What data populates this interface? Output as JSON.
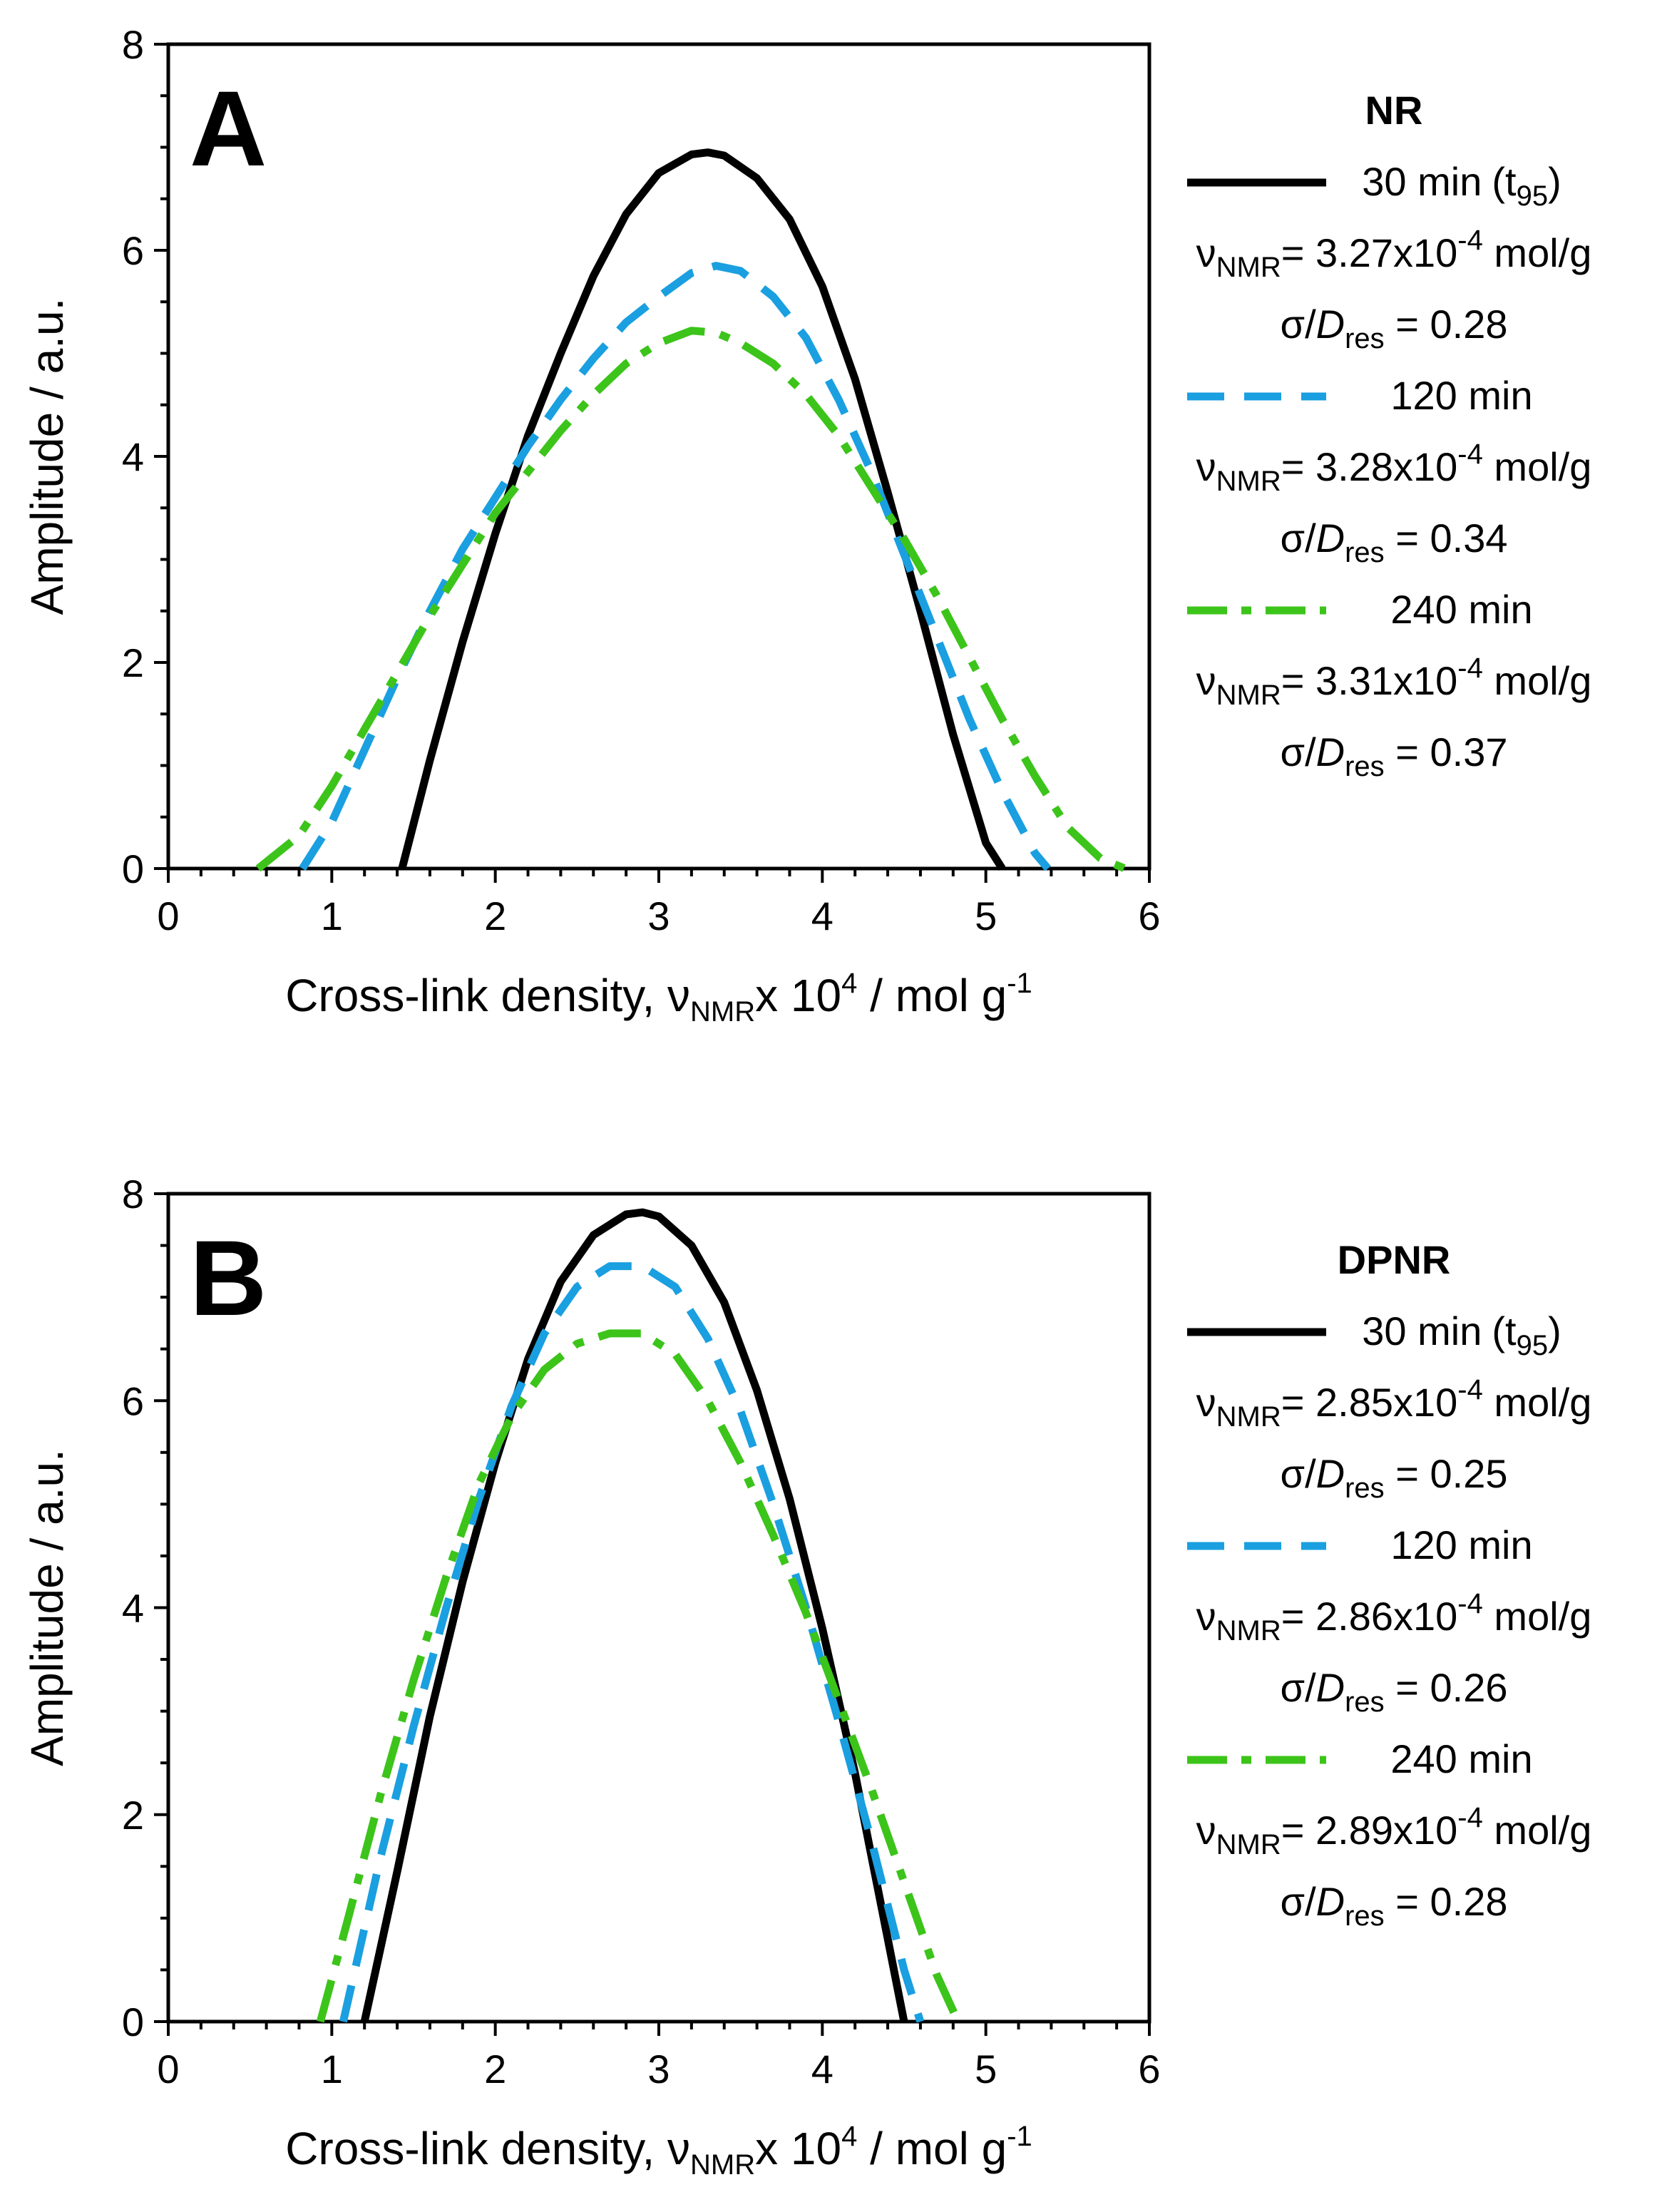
{
  "chart_data": [
    {
      "type": "line",
      "panel_label": "A",
      "xlabel": "Cross-link density, ",
      "xlabel_symbol": "ν",
      "xlabel_symbol_sub": "NMR",
      "xlabel_rest": "x 10",
      "xlabel_sup": "4",
      "xlabel_unit": " / mol g",
      "xlabel_unit_sup": "-1",
      "ylabel": "Amplitude / a.u.",
      "xlim": [
        0,
        6
      ],
      "ylim": [
        0,
        8
      ],
      "xticks": [
        "0",
        "1",
        "2",
        "3",
        "4",
        "5",
        "6"
      ],
      "yticks": [
        "0",
        "2",
        "4",
        "6",
        "8"
      ],
      "legend_title": "NR",
      "series": [
        {
          "name": "30 min",
          "name_paren": "(t",
          "name_paren_sub": "95",
          "name_paren_close": ")",
          "color": "#000000",
          "style": "solid",
          "nu_symbol": "ν",
          "nu_sub": "NMR",
          "nu_value": "= 3.27x10",
          "nu_exp": "-4",
          "nu_unit": " mol/g",
          "sigma_symbol": "σ/",
          "sigma_D": "D",
          "sigma_sub": "res",
          "sigma_value": " = 0.28",
          "x": [
            1.43,
            1.6,
            1.8,
            2.0,
            2.2,
            2.4,
            2.6,
            2.8,
            3.0,
            3.2,
            3.3,
            3.4,
            3.6,
            3.8,
            4.0,
            4.2,
            4.4,
            4.6,
            4.8,
            5.0,
            5.1
          ],
          "y": [
            0.0,
            1.05,
            2.2,
            3.25,
            4.2,
            5.0,
            5.75,
            6.35,
            6.75,
            6.93,
            6.95,
            6.92,
            6.7,
            6.3,
            5.65,
            4.75,
            3.65,
            2.5,
            1.3,
            0.25,
            0.0
          ]
        },
        {
          "name": "120 min",
          "color": "#1a9fe0",
          "style": "dashed",
          "nu_symbol": "ν",
          "nu_sub": "NMR",
          "nu_value": "= 3.28x10",
          "nu_exp": "-4",
          "nu_unit": " mol/g",
          "sigma_symbol": "σ/",
          "sigma_D": "D",
          "sigma_sub": "res",
          "sigma_value": " = 0.34",
          "x": [
            0.82,
            1.0,
            1.2,
            1.4,
            1.6,
            1.8,
            2.0,
            2.2,
            2.4,
            2.6,
            2.8,
            3.0,
            3.2,
            3.35,
            3.5,
            3.7,
            3.9,
            4.1,
            4.3,
            4.5,
            4.7,
            4.9,
            5.1,
            5.3,
            5.38
          ],
          "y": [
            0.0,
            0.45,
            1.15,
            1.85,
            2.5,
            3.1,
            3.6,
            4.1,
            4.55,
            4.95,
            5.3,
            5.55,
            5.78,
            5.85,
            5.8,
            5.55,
            5.15,
            4.55,
            3.85,
            3.05,
            2.25,
            1.45,
            0.75,
            0.15,
            0.0
          ]
        },
        {
          "name": "240 min",
          "color": "#3cc41a",
          "style": "dashdot",
          "nu_symbol": "ν",
          "nu_sub": "NMR",
          "nu_value": "= 3.31x10",
          "nu_exp": "-4",
          "nu_unit": " mol/g",
          "sigma_symbol": "σ/",
          "sigma_D": "D",
          "sigma_sub": "res",
          "sigma_value": " = 0.37",
          "x": [
            0.55,
            0.8,
            1.0,
            1.2,
            1.4,
            1.6,
            1.8,
            2.0,
            2.2,
            2.4,
            2.6,
            2.8,
            3.0,
            3.2,
            3.35,
            3.5,
            3.7,
            3.9,
            4.1,
            4.3,
            4.5,
            4.7,
            4.9,
            5.1,
            5.3,
            5.5,
            5.7,
            5.85
          ],
          "y": [
            0.0,
            0.32,
            0.8,
            1.35,
            1.9,
            2.45,
            2.95,
            3.45,
            3.85,
            4.25,
            4.6,
            4.9,
            5.1,
            5.22,
            5.2,
            5.1,
            4.9,
            4.6,
            4.2,
            3.7,
            3.2,
            2.65,
            2.05,
            1.45,
            0.9,
            0.4,
            0.1,
            0.0
          ]
        }
      ]
    },
    {
      "type": "line",
      "panel_label": "B",
      "xlabel": "Cross-link density, ",
      "xlabel_symbol": "ν",
      "xlabel_symbol_sub": "NMR",
      "xlabel_rest": "x 10",
      "xlabel_sup": "4",
      "xlabel_unit": " / mol g",
      "xlabel_unit_sup": "-1",
      "ylabel": "Amplitude / a.u.",
      "xlim": [
        0,
        6
      ],
      "ylim": [
        0,
        8
      ],
      "xticks": [
        "0",
        "1",
        "2",
        "3",
        "4",
        "5",
        "6"
      ],
      "yticks": [
        "0",
        "2",
        "4",
        "6",
        "8"
      ],
      "legend_title": "DPNR",
      "series": [
        {
          "name": "30 min",
          "name_paren": "(t",
          "name_paren_sub": "95",
          "name_paren_close": ")",
          "color": "#000000",
          "style": "solid",
          "nu_symbol": "ν",
          "nu_sub": "NMR",
          "nu_value": "= 2.85x10",
          "nu_exp": "-4",
          "nu_unit": " mol/g",
          "sigma_symbol": "σ/",
          "sigma_D": "D",
          "sigma_sub": "res",
          "sigma_value": " = 0.25",
          "x": [
            1.2,
            1.4,
            1.6,
            1.8,
            2.0,
            2.2,
            2.4,
            2.6,
            2.8,
            2.9,
            3.0,
            3.2,
            3.4,
            3.6,
            3.8,
            4.0,
            4.2,
            4.4,
            4.5
          ],
          "y": [
            0.0,
            1.45,
            2.95,
            4.25,
            5.4,
            6.4,
            7.15,
            7.6,
            7.8,
            7.82,
            7.78,
            7.5,
            6.95,
            6.1,
            5.05,
            3.8,
            2.4,
            0.8,
            0.0
          ]
        },
        {
          "name": "120 min",
          "color": "#1a9fe0",
          "style": "dashed",
          "nu_symbol": "ν",
          "nu_sub": "NMR",
          "nu_value": "= 2.86x10",
          "nu_exp": "-4",
          "nu_unit": " mol/g",
          "sigma_symbol": "σ/",
          "sigma_D": "D",
          "sigma_sub": "res",
          "sigma_value": " = 0.26",
          "x": [
            1.07,
            1.3,
            1.5,
            1.7,
            1.9,
            2.1,
            2.3,
            2.5,
            2.7,
            2.9,
            3.1,
            3.3,
            3.5,
            3.7,
            3.9,
            4.1,
            4.3,
            4.5,
            4.6
          ],
          "y": [
            0.0,
            1.6,
            2.85,
            4.0,
            5.05,
            5.95,
            6.65,
            7.1,
            7.3,
            7.3,
            7.1,
            6.6,
            5.9,
            5.0,
            4.0,
            2.9,
            1.75,
            0.5,
            0.0
          ]
        },
        {
          "name": "240 min",
          "color": "#3cc41a",
          "style": "dashdot",
          "nu_symbol": "ν",
          "nu_sub": "NMR",
          "nu_value": "= 2.89x10",
          "nu_exp": "-4",
          "nu_unit": " mol/g",
          "sigma_symbol": "σ/",
          "sigma_D": "D",
          "sigma_sub": "res",
          "sigma_value": " = 0.28",
          "x": [
            0.93,
            1.1,
            1.3,
            1.5,
            1.7,
            1.9,
            2.1,
            2.3,
            2.5,
            2.7,
            2.9,
            3.1,
            3.3,
            3.5,
            3.7,
            3.9,
            4.1,
            4.3,
            4.5,
            4.7,
            4.83
          ],
          "y": [
            0.0,
            1.0,
            2.2,
            3.3,
            4.3,
            5.2,
            5.85,
            6.3,
            6.55,
            6.65,
            6.65,
            6.45,
            6.0,
            5.4,
            4.7,
            3.95,
            3.1,
            2.25,
            1.35,
            0.45,
            0.0
          ]
        }
      ]
    }
  ]
}
